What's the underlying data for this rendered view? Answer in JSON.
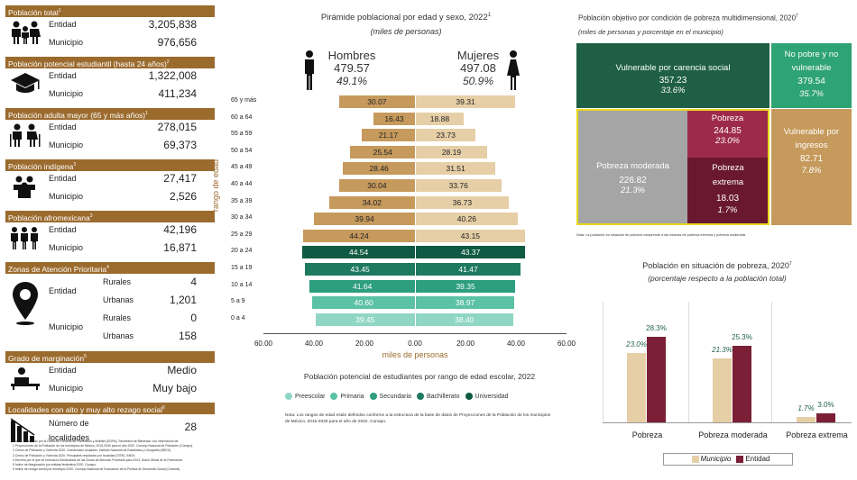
{
  "left_panel": {
    "sections": [
      {
        "title": "Población total",
        "sup": "1",
        "rows": [
          {
            "label": "Entidad",
            "value": "3,205,838"
          },
          {
            "label": "Municipio",
            "value": "976,656"
          }
        ],
        "icon": "family-icon"
      },
      {
        "title": "Población potencial estudiantil (hasta 24 años)",
        "sup": "2",
        "rows": [
          {
            "label": "Entidad",
            "value": "1,322,008"
          },
          {
            "label": "Municipio",
            "value": "411,234"
          }
        ],
        "icon": "graduation-cap-icon"
      },
      {
        "title": "Población adulta mayor (65 y más años)",
        "sup": "1",
        "rows": [
          {
            "label": "Entidad",
            "value": "278,015"
          },
          {
            "label": "Municipio",
            "value": "69,373"
          }
        ],
        "icon": "elderly-couple-icon"
      },
      {
        "title": "Población indígena",
        "sup": "3",
        "rows": [
          {
            "label": "Entidad",
            "value": "27,417"
          },
          {
            "label": "Municipio",
            "value": "2,526"
          }
        ],
        "icon": "group-icon"
      },
      {
        "title": "Población afromexicana",
        "sup": "3",
        "rows": [
          {
            "label": "Entidad",
            "value": "42,196"
          },
          {
            "label": "Municipio",
            "value": "16,871"
          }
        ],
        "icon": "people-row-icon"
      }
    ],
    "zonas": {
      "title": "Zonas de Atención Prioritaria",
      "sup": "4",
      "entidad": "Entidad",
      "municipio": "Municipio",
      "rurales": "Rurales",
      "urbanas": "Urbanas",
      "ent_rurales": "4",
      "ent_urbanas": "1,201",
      "mun_rurales": "0",
      "mun_urbanas": "158",
      "icon": "location-pin-icon"
    },
    "marginacion": {
      "title": "Grado de marginación",
      "sup": "5",
      "rows": [
        {
          "label": "Entidad",
          "value": "Medio"
        },
        {
          "label": "Municipio",
          "value": "Muy bajo"
        }
      ],
      "icon": "person-desk-icon"
    },
    "rezago": {
      "title": "Localidades con alto y muy alto rezago social",
      "sup": "6",
      "label": "Número de localidades",
      "value": "28",
      "icon": "declining-chart-icon"
    },
    "footnotes": [
      "Fuente: Elaborado por la Dirección General de Planeación y Análisis (DGPA), Secretaría de Bienestar, con información de:",
      "1 Proyecciones de la Población de los municipios de México, 2015-2030 para el año 2022. Consejo Nacional de Población (Conapo).",
      "2 Censo de Población y Vivienda 2020. Cuestionario ampliado. Instituto Nacional de Estadística y Geografía (INEGI).",
      "3 Censo de Población y Vivienda 2020. Principales resultados por localidad (ITER). INEGI.",
      "4 Decreto por el que se formula la Declaratoria de las Zonas de Atención Prioritaria para 2023. Diario Oficial de la Federación.",
      "5 Índice de Marginación por entidad federativa 2020. Conapo.",
      "6 Índice de rezago social por municipio 2020. Consejo Nacional de Evaluación de la Política de Desarrollo Social (Coneval)."
    ]
  },
  "pyramid": {
    "title": "Pirámide poblacional por edad y sexo, 2022",
    "title_sup": "1",
    "subtitle": "(miles de personas)",
    "men_label": "Hombres",
    "men_total": "479.57",
    "men_pct": "49.1%",
    "women_label": "Mujeres",
    "women_total": "497.08",
    "women_pct": "50.9%",
    "ylabel": "rango de edad",
    "xlabel": "miles de personas",
    "xticks": [
      "60.00",
      "40.00",
      "20.00",
      "0.00",
      "20.00",
      "40.00",
      "60.00"
    ],
    "legend_title": "Población potencial de estudiantes por rango de edad escolar, 2022",
    "legend": [
      {
        "name": "Preescolar",
        "color": "#8fd6c4"
      },
      {
        "name": "Primaria",
        "color": "#5cc2a5"
      },
      {
        "name": "Secundaria",
        "color": "#2d9e7f"
      },
      {
        "name": "Bachillerato",
        "color": "#1d7a5f"
      },
      {
        "name": "Universidad",
        "color": "#0e5a42"
      }
    ],
    "note": "Nota: Los rangos de edad están definidos conforme a la estructura de la base de datos de Proyecciones de la Población de los municipios de México, 2015-2030 para el año de 2022. Conapo."
  },
  "chart_data": [
    {
      "type": "bar",
      "title": "Pirámide poblacional por edad y sexo, 2022",
      "ylabel": "rango de edad",
      "xlabel": "miles de personas",
      "xlim": [
        -60,
        60
      ],
      "categories": [
        "65 y más",
        "60 a 64",
        "55 a 59",
        "50 a 54",
        "45 a 49",
        "40 a 44",
        "35 a 39",
        "30 a 34",
        "25 a 29",
        "20 a 24",
        "15 a 19",
        "10 a 14",
        "5 a 9",
        "0 a 4"
      ],
      "series": [
        {
          "name": "Hombres",
          "values": [
            30.07,
            16.43,
            21.17,
            25.54,
            28.46,
            30.04,
            34.02,
            39.94,
            44.24,
            44.54,
            43.45,
            41.64,
            40.6,
            39.45
          ],
          "colors": [
            "#c69a5c",
            "#c69a5c",
            "#c69a5c",
            "#c69a5c",
            "#c69a5c",
            "#c69a5c",
            "#c69a5c",
            "#c69a5c",
            "#c69a5c",
            "#0e5a42",
            "#1d7a5f",
            "#2d9e7f",
            "#5cc2a5",
            "#8fd6c4"
          ]
        },
        {
          "name": "Mujeres",
          "values": [
            39.31,
            18.88,
            23.73,
            28.19,
            31.51,
            33.76,
            36.73,
            40.26,
            43.15,
            43.37,
            41.47,
            39.35,
            38.97,
            38.4
          ],
          "colors": [
            "#e6cfa6",
            "#e6cfa6",
            "#e6cfa6",
            "#e6cfa6",
            "#e6cfa6",
            "#e6cfa6",
            "#e6cfa6",
            "#e6cfa6",
            "#e6cfa6",
            "#0e5a42",
            "#1d7a5f",
            "#2d9e7f",
            "#5cc2a5",
            "#8fd6c4"
          ]
        }
      ]
    },
    {
      "type": "bar",
      "title": "Población en situación de pobreza, 2020",
      "categories": [
        "Pobreza",
        "Pobreza moderada",
        "Pobreza extrema"
      ],
      "series": [
        {
          "name": "Municipio",
          "values": [
            23.0,
            21.3,
            1.7
          ],
          "labels": [
            "23.0%",
            "21.3%",
            "1.7%"
          ],
          "color": "#e6cfa6"
        },
        {
          "name": "Entidad",
          "values": [
            28.3,
            25.3,
            3.0
          ],
          "labels": [
            "28.3%",
            "25.3%",
            "3.0%"
          ],
          "color": "#7a1f35"
        }
      ]
    }
  ],
  "poverty_grid": {
    "title": "Población objetivo por condición de pobreza multidimensional, 2020",
    "title_sup": "7",
    "subtitle": "(miles de personas y porcentaje en el municipio)",
    "vulnerable_carencia": {
      "label": "Vulnerable por carencia social",
      "value": "357.23",
      "pct": "33.6%"
    },
    "no_pobre": {
      "label": "No pobre y no vulnerable",
      "value": "379.54",
      "pct": "35.7%"
    },
    "pobreza": {
      "label": "Pobreza",
      "value": "244.85",
      "pct": "23.0%"
    },
    "moderada": {
      "label": "Pobreza moderada",
      "value": "226.82",
      "pct": "21.3%"
    },
    "extrema": {
      "label": "Pobreza extrema",
      "value": "18.03",
      "pct": "1.7%"
    },
    "vulnerable_ingresos": {
      "label": "Vulnerable por ingresos",
      "value": "82.71",
      "pct": "7.8%"
    },
    "note": "Nota: La población en situación de pobreza comprende a las mismas de pobreza extrema y pobreza moderada."
  },
  "poverty_chart": {
    "title": "Población en situación de pobreza, 2020",
    "title_sup": "7",
    "subtitle": "(porcentaje respecto a la población total)",
    "legend": [
      {
        "name": "Municipio",
        "color": "#e6cfa6"
      },
      {
        "name": "Entidad",
        "color": "#7a1f35"
      }
    ]
  }
}
